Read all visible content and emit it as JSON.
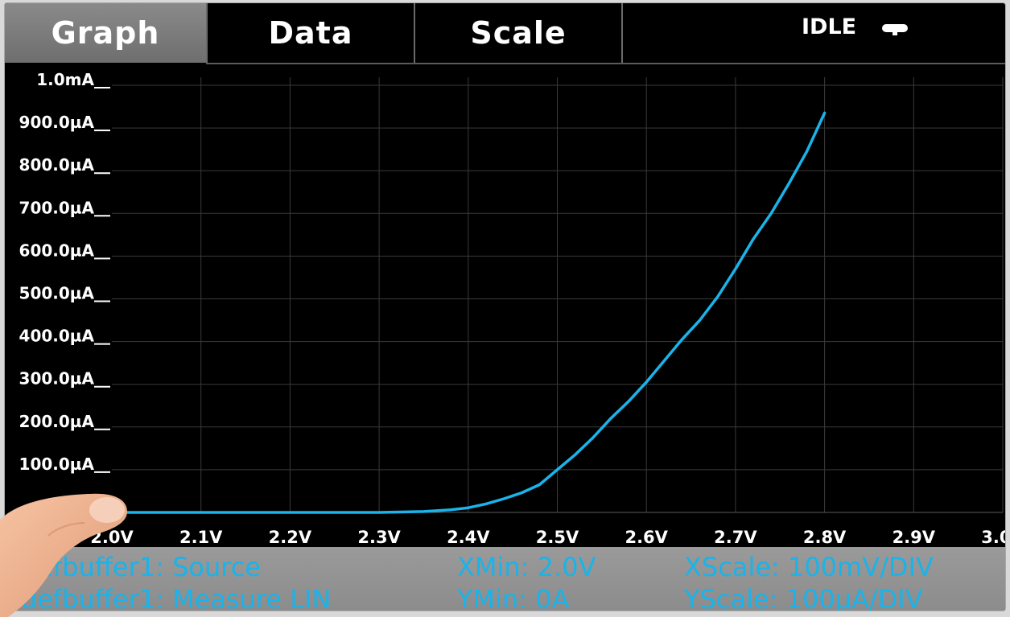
{
  "tabs": [
    {
      "label": "Graph",
      "active": true
    },
    {
      "label": "Data",
      "active": false
    },
    {
      "label": "Scale",
      "active": false
    }
  ],
  "status": {
    "label": "IDLE",
    "icon": "idle-indicator-icon"
  },
  "chart_data": {
    "type": "line",
    "xlim": [
      2.0,
      3.0
    ],
    "ylim": [
      0,
      1000
    ],
    "y_unit": "µA",
    "x_ticks": [
      {
        "value": 2.0,
        "label": "2.0V"
      },
      {
        "value": 2.1,
        "label": "2.1V"
      },
      {
        "value": 2.2,
        "label": "2.2V"
      },
      {
        "value": 2.3,
        "label": "2.3V"
      },
      {
        "value": 2.4,
        "label": "2.4V"
      },
      {
        "value": 2.5,
        "label": "2.5V"
      },
      {
        "value": 2.6,
        "label": "2.6V"
      },
      {
        "value": 2.7,
        "label": "2.7V"
      },
      {
        "value": 2.8,
        "label": "2.8V"
      },
      {
        "value": 2.9,
        "label": "2.9V"
      },
      {
        "value": 3.0,
        "label": "3.0V"
      }
    ],
    "y_ticks": [
      {
        "value": 0,
        "label": "0A"
      },
      {
        "value": 100,
        "label": "100.0µA"
      },
      {
        "value": 200,
        "label": "200.0µA"
      },
      {
        "value": 300,
        "label": "300.0µA"
      },
      {
        "value": 400,
        "label": "400.0µA"
      },
      {
        "value": 500,
        "label": "500.0µA"
      },
      {
        "value": 600,
        "label": "600.0µA"
      },
      {
        "value": 700,
        "label": "700.0µA"
      },
      {
        "value": 800,
        "label": "800.0µA"
      },
      {
        "value": 900,
        "label": "900.0µA"
      },
      {
        "value": 1000,
        "label": "1.0mA"
      }
    ],
    "grid": true,
    "series": [
      {
        "color": "#1ab3ea",
        "x": [
          2.0,
          2.3,
          2.35,
          2.38,
          2.4,
          2.42,
          2.44,
          2.46,
          2.48,
          2.5,
          2.52,
          2.54,
          2.56,
          2.58,
          2.6,
          2.62,
          2.64,
          2.66,
          2.68,
          2.7,
          2.72,
          2.74,
          2.76,
          2.78,
          2.8
        ],
        "y": [
          0,
          0,
          2,
          6,
          11,
          20,
          32,
          46,
          65,
          100,
          135,
          175,
          220,
          260,
          305,
          355,
          405,
          450,
          505,
          570,
          640,
          700,
          770,
          845,
          935
        ]
      }
    ]
  },
  "footer": {
    "trace_source": "defbuffer1: Source",
    "trace_measure": "defbuffer1: Measure LIN",
    "xmin": "XMin: 2.0V",
    "ymin": "YMin: 0A",
    "xscale": "XScale: 100mV/DIV",
    "yscale": "YScale: 100µA/DIV"
  }
}
